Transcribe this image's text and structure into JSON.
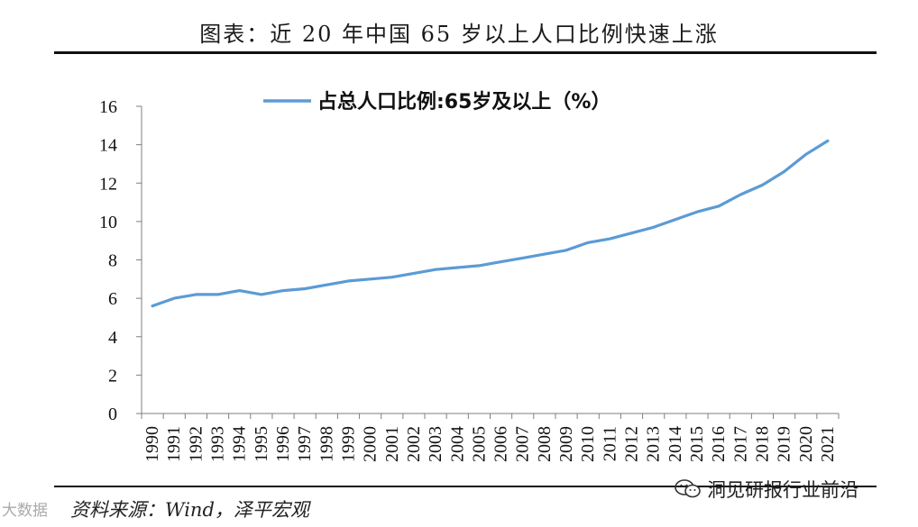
{
  "header": {
    "title": "图表：近 20 年中国 65 岁以上人口比例快速上涨"
  },
  "footer": {
    "source": "资料来源：Wind，泽平宏观",
    "watermark": "洞见研报行业前沿",
    "corner_mark": "大数据"
  },
  "colors": {
    "line": "#5b9bd5",
    "axis": "#7f7f7f"
  },
  "icons": {
    "watermark_icon": "wechat-icon"
  },
  "chart_data": {
    "type": "line",
    "categories": [
      "1990",
      "1991",
      "1992",
      "1993",
      "1994",
      "1995",
      "1996",
      "1997",
      "1998",
      "1999",
      "2000",
      "2001",
      "2002",
      "2003",
      "2004",
      "2005",
      "2006",
      "2007",
      "2008",
      "2009",
      "2010",
      "2011",
      "2012",
      "2013",
      "2014",
      "2015",
      "2016",
      "2017",
      "2018",
      "2019",
      "2020",
      "2021"
    ],
    "series": [
      {
        "name": "占总人口比例:65岁及以上（%）",
        "values": [
          5.6,
          6.0,
          6.2,
          6.2,
          6.4,
          6.2,
          6.4,
          6.5,
          6.7,
          6.9,
          7.0,
          7.1,
          7.3,
          7.5,
          7.6,
          7.7,
          7.9,
          8.1,
          8.3,
          8.5,
          8.9,
          9.1,
          9.4,
          9.7,
          10.1,
          10.5,
          10.8,
          11.4,
          11.9,
          12.6,
          13.5,
          14.2
        ]
      }
    ],
    "y_ticks": [
      0,
      2,
      4,
      6,
      8,
      10,
      12,
      14,
      16
    ],
    "ylim": [
      0,
      16
    ],
    "grid": false,
    "legend_position": "top-center"
  }
}
